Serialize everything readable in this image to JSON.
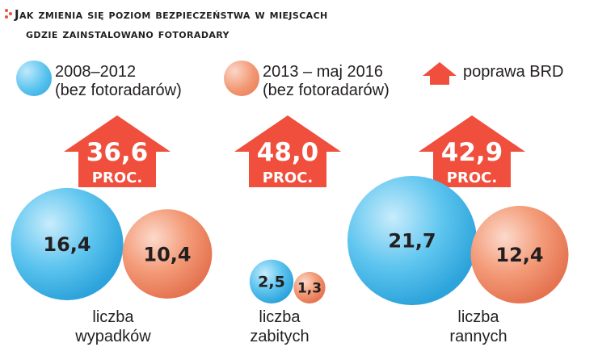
{
  "title": {
    "line1": "Jak zmienia się poziom bezpieczeństwa w miejscach",
    "line2": "gdzie zainstalowano fotoradary"
  },
  "legend": {
    "period1": {
      "line1": "2008–2012",
      "line2": "(bez fotoradarów)",
      "color": "#59c3ee"
    },
    "period2": {
      "line1": "2013 – maj 2016",
      "line2": "(bez fotoradarów)",
      "color": "#f29672"
    },
    "improvement": {
      "label": "poprawa BRD",
      "color": "#ef4f3c"
    }
  },
  "chart_data": {
    "type": "bubble",
    "title": "Jak zmienia się poziom bezpieczeństwa w miejscach gdzie zainstalowano fotoradary",
    "categories": [
      "liczba wypadków",
      "liczba zabitych",
      "liczba rannych"
    ],
    "series": [
      {
        "name": "2008–2012 (bez fotoradarów)",
        "values": [
          16.4,
          2.5,
          21.7
        ]
      },
      {
        "name": "2013 – maj 2016 (bez fotoradarów)",
        "values": [
          10.4,
          1.3,
          12.4
        ]
      }
    ],
    "improvement": {
      "name": "poprawa BRD",
      "values": [
        "36,6",
        "48,0",
        "42,9"
      ],
      "unit": "PROC."
    },
    "value_labels_period1": [
      "16,4",
      "2,5",
      "21,7"
    ],
    "value_labels_period2": [
      "10,4",
      "1,3",
      "12,4"
    ]
  },
  "categories": [
    {
      "line1": "liczba",
      "line2": "wypadków"
    },
    {
      "line1": "liczba",
      "line2": "zabitych"
    },
    {
      "line1": "liczba",
      "line2": "rannych"
    }
  ]
}
